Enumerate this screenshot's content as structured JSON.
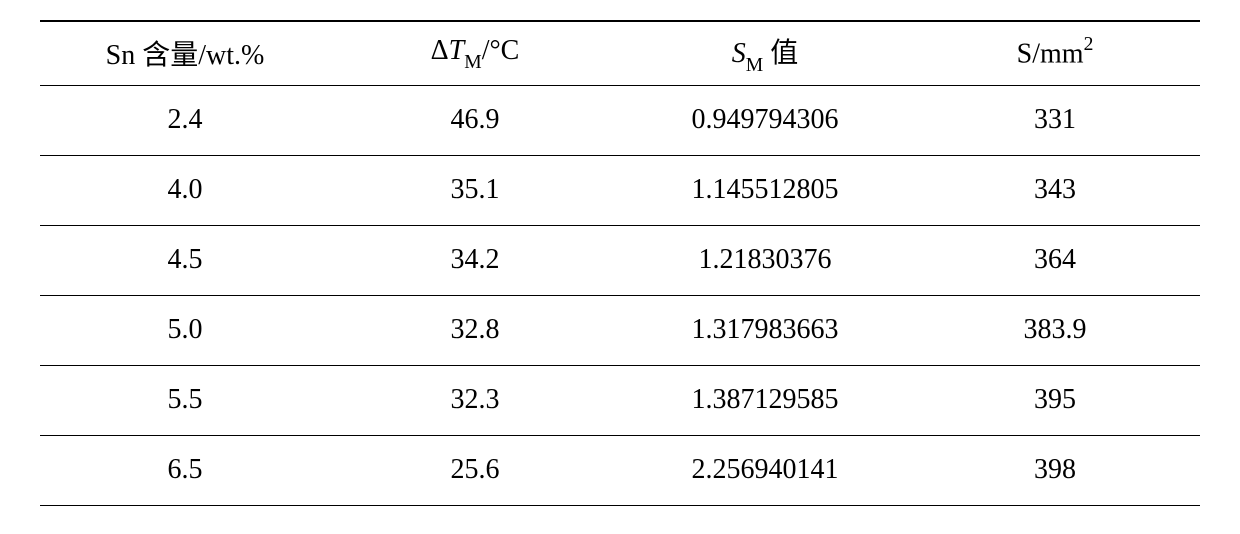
{
  "table": {
    "type": "table",
    "background_color": "#ffffff",
    "border_color": "#000000",
    "header_fontsize": 28,
    "cell_fontsize": 28,
    "text_color": "#000000",
    "font_family": "Times New Roman, SimSun, serif",
    "column_widths": [
      "25%",
      "25%",
      "25%",
      "25%"
    ],
    "alignment": "center",
    "top_border_width": 2,
    "row_border_width": 1.5,
    "columns": [
      {
        "plain": "Sn 含量/wt.%",
        "prefix": "Sn 含量/wt.%",
        "italic": "",
        "sub": "",
        "suffix": "",
        "sup": ""
      },
      {
        "plain": "ΔTM/°C",
        "prefix": "Δ",
        "italic": "T",
        "sub": "M",
        "suffix": "/°C",
        "sup": ""
      },
      {
        "plain": "SM 值",
        "prefix": "",
        "italic": "S",
        "sub": "M",
        "suffix": " 值",
        "sup": ""
      },
      {
        "plain": "S/mm2",
        "prefix": "S/mm",
        "italic": "",
        "sub": "",
        "suffix": "",
        "sup": "2"
      }
    ],
    "rows": [
      [
        "2.4",
        "46.9",
        "0.949794306",
        "331"
      ],
      [
        "4.0",
        "35.1",
        "1.145512805",
        "343"
      ],
      [
        "4.5",
        "34.2",
        "1.21830376",
        "364"
      ],
      [
        "5.0",
        "32.8",
        "1.317983663",
        "383.9"
      ],
      [
        "5.5",
        "32.3",
        "1.387129585",
        "395"
      ],
      [
        "6.5",
        "25.6",
        "2.256940141",
        "398"
      ]
    ]
  }
}
